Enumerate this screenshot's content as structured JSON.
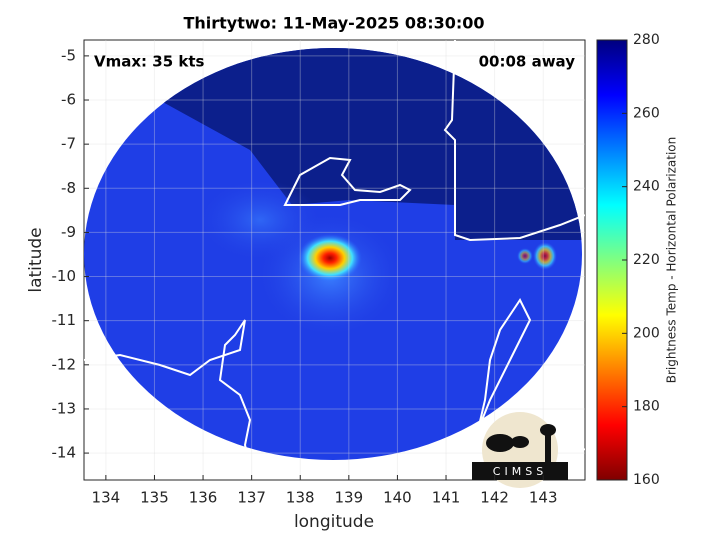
{
  "title": "Thirtytwo: 11-May-2025 08:30:00",
  "annotations": {
    "vmax": "Vmax: 35 kts",
    "away": "00:08 away"
  },
  "axes": {
    "xlabel": "longitude",
    "ylabel": "latitude",
    "xlim": [
      133.55,
      143.86
    ],
    "xticks": [
      134,
      135,
      136,
      137,
      138,
      139,
      140,
      141,
      142,
      143
    ],
    "ylim": [
      -14.61,
      -4.64
    ],
    "yticks": [
      -5,
      -6,
      -7,
      -8,
      -9,
      -10,
      -11,
      -12,
      -13,
      -14
    ],
    "grid": true
  },
  "colorbar": {
    "label": "Brightness Temp - Horizontal Polarization",
    "lim": [
      160,
      280
    ],
    "ticks": [
      160,
      180,
      200,
      220,
      240,
      260,
      280
    ]
  },
  "logo": "CIMSS"
}
